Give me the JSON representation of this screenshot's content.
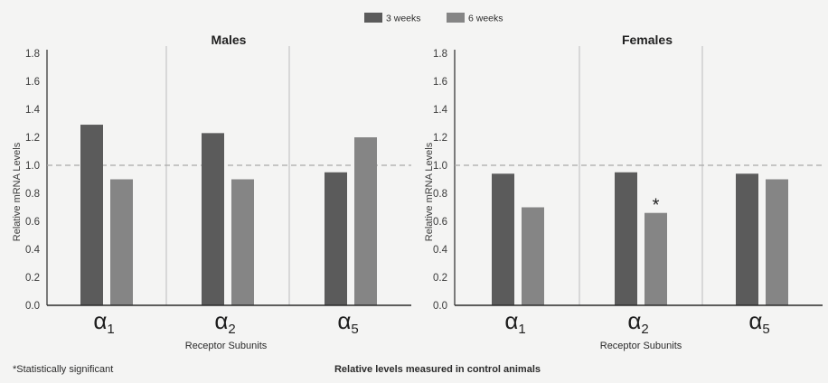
{
  "legend": [
    {
      "label": "3 weeks",
      "color": "#5b5b5b"
    },
    {
      "label": "6 weeks",
      "color": "#858585"
    }
  ],
  "footnote": "*Statistically significant",
  "caption": "Relative levels measured in control animals",
  "chart_data": [
    {
      "type": "bar",
      "title": "Males",
      "xlabel": "Receptor Subunits",
      "ylabel": "Relative mRNA Levels",
      "ylim": [
        0,
        1.8
      ],
      "yticks": [
        "0.0",
        "0.2",
        "0.4",
        "0.6",
        "0.8",
        "1.0",
        "1.2",
        "1.4",
        "1.6",
        "1.8"
      ],
      "reference_line": 1.0,
      "grid": false,
      "categories": [
        {
          "base": "α",
          "sub": "1"
        },
        {
          "base": "α",
          "sub": "2"
        },
        {
          "base": "α",
          "sub": "5"
        }
      ],
      "series": [
        {
          "name": "3 weeks",
          "values": [
            1.29,
            1.23,
            0.95
          ]
        },
        {
          "name": "6 weeks",
          "values": [
            0.9,
            0.9,
            1.2
          ]
        }
      ],
      "annotations": []
    },
    {
      "type": "bar",
      "title": "Females",
      "xlabel": "Receptor Subunits",
      "ylabel": "Relative mRNA Levels",
      "ylim": [
        0,
        1.8
      ],
      "yticks": [
        "0.0",
        "0.2",
        "0.4",
        "0.6",
        "0.8",
        "1.0",
        "1.2",
        "1.4",
        "1.6",
        "1.8"
      ],
      "reference_line": 1.0,
      "grid": false,
      "categories": [
        {
          "base": "α",
          "sub": "1"
        },
        {
          "base": "α",
          "sub": "2"
        },
        {
          "base": "α",
          "sub": "5"
        }
      ],
      "series": [
        {
          "name": "3 weeks",
          "values": [
            0.94,
            0.95,
            0.94
          ]
        },
        {
          "name": "6 weeks",
          "values": [
            0.7,
            0.66,
            0.9
          ]
        }
      ],
      "annotations": [
        {
          "category": 1,
          "series": 1,
          "text": "*"
        }
      ]
    }
  ]
}
